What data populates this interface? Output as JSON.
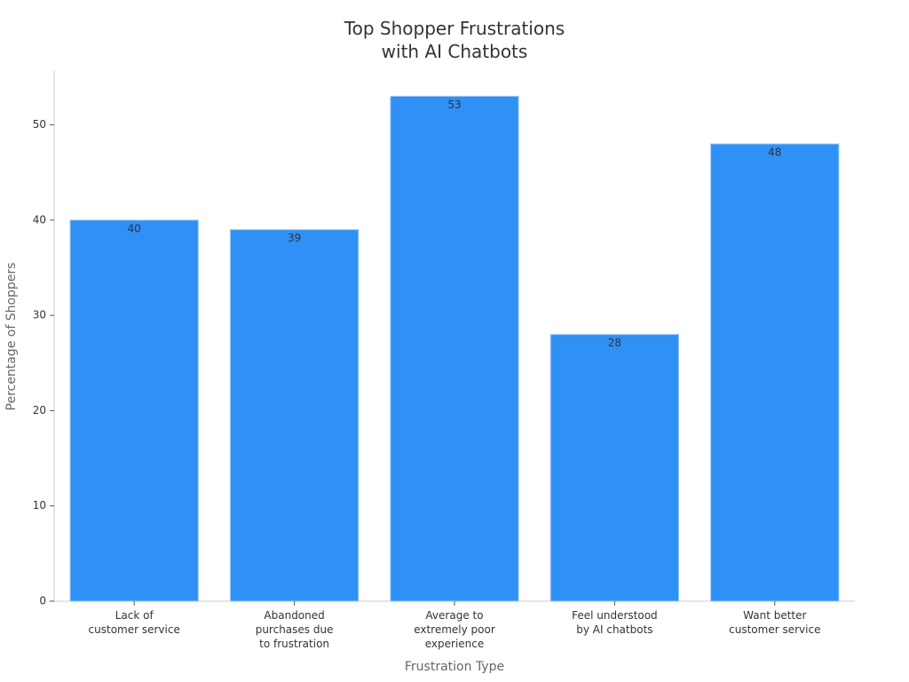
{
  "chart_data": {
    "type": "bar",
    "title": "Top Shopper Frustrations\nwith AI Chatbots",
    "x_label": "Frustration Type",
    "y_label": "Percentage of Shoppers",
    "categories": [
      "Lack of\ncustomer service",
      "Abandoned\npurchases due\nto frustration",
      "Average to\nextremely poor\nexperience",
      "Feel understood\nby AI chatbots",
      "Want better\ncustomer service"
    ],
    "values": [
      40,
      39,
      53,
      28,
      48
    ],
    "color": "#2f90f6",
    "ylim": [
      0,
      55.65
    ],
    "yticks": [
      0,
      10,
      20,
      30,
      40,
      50
    ],
    "grid": false
  }
}
